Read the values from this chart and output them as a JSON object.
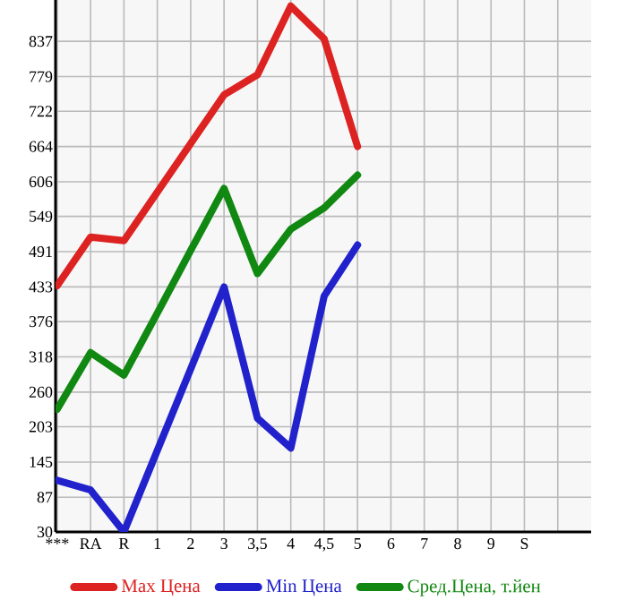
{
  "chart_data": {
    "type": "line",
    "categories": [
      "***",
      "RA",
      "R",
      "1",
      "2",
      "3",
      "3,5",
      "4",
      "4,5",
      "5",
      "6",
      "7",
      "8",
      "9",
      "S",
      null
    ],
    "series": [
      {
        "name": "Max Цена",
        "color": "#dd2222",
        "values": [
          435,
          515,
          509,
          589,
          669,
          749,
          782,
          895,
          841,
          664,
          null,
          null,
          null,
          null,
          null,
          null
        ]
      },
      {
        "name": "Min Цена",
        "color": "#2222cc",
        "values": [
          115,
          99,
          30,
          164,
          298,
          433,
          217,
          168,
          418,
          502,
          null,
          null,
          null,
          null,
          null,
          null
        ]
      },
      {
        "name": "Сред.Цена, т.йен",
        "color": "#118811",
        "values": [
          232,
          325,
          288,
          390,
          493,
          595,
          455,
          528,
          563,
          617,
          null,
          null,
          null,
          null,
          null,
          null
        ]
      }
    ],
    "ylim": [
      30,
      905
    ],
    "yticks": [
      30,
      87,
      145,
      203,
      260,
      318,
      376,
      433,
      491,
      549,
      606,
      664,
      722,
      779,
      837
    ],
    "grid": true,
    "legend": "bottom",
    "marker": "none",
    "line_style": "solid"
  }
}
